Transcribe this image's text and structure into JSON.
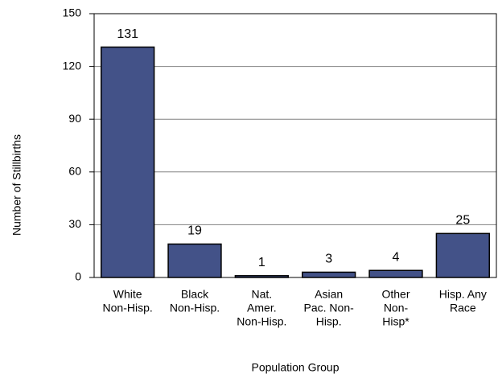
{
  "chart_data": {
    "type": "bar",
    "categories": [
      [
        "White",
        "Non-Hisp."
      ],
      [
        "Black",
        "Non-Hisp."
      ],
      [
        "Nat.",
        "Amer.",
        "Non-Hisp."
      ],
      [
        "Asian",
        "Pac. Non-",
        "Hisp."
      ],
      [
        "Other",
        "Non-",
        "Hisp*"
      ],
      [
        "Hisp. Any",
        "Race"
      ]
    ],
    "values": [
      131,
      19,
      1,
      3,
      4,
      25
    ],
    "color": "#435288",
    "ylim": [
      0,
      150
    ],
    "yticks": [
      0,
      30,
      60,
      90,
      120,
      150
    ],
    "grid": true,
    "x_label": "Population Group",
    "y_label": "Number of Stillbirths"
  }
}
